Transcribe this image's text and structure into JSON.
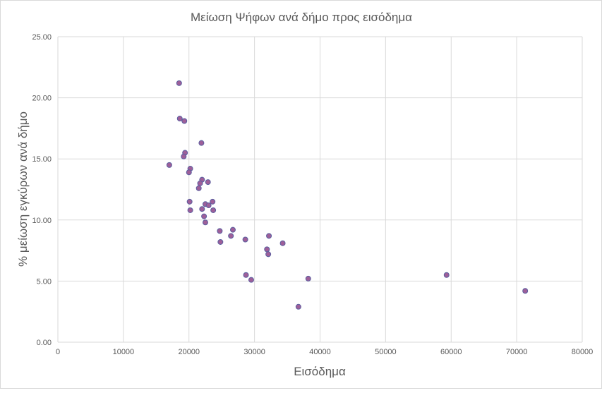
{
  "chart_data": {
    "type": "scatter",
    "title": "Μείωση Ψήφων ανά δήμο προς εισόδημα",
    "xlabel": "Εισόδημα",
    "ylabel": "% μείωση εγκύρων ανά δήμο",
    "xlim": [
      0,
      80000
    ],
    "ylim": [
      0,
      25
    ],
    "x_ticks": [
      "0",
      "10000",
      "20000",
      "30000",
      "40000",
      "50000",
      "60000",
      "70000",
      "80000"
    ],
    "y_ticks": [
      "0.00",
      "5.00",
      "10.00",
      "15.00",
      "20.00",
      "25.00"
    ],
    "grid": true,
    "legend": "none",
    "marker_fill": "#9e5f99",
    "marker_edge": "#5b5fa0",
    "gridline_color": "#d9d9d9",
    "points": [
      {
        "x": 18500,
        "y": 21.2
      },
      {
        "x": 18600,
        "y": 18.3
      },
      {
        "x": 19300,
        "y": 18.1
      },
      {
        "x": 21900,
        "y": 16.3
      },
      {
        "x": 19400,
        "y": 15.5
      },
      {
        "x": 19200,
        "y": 15.2
      },
      {
        "x": 17000,
        "y": 14.5
      },
      {
        "x": 20200,
        "y": 14.2
      },
      {
        "x": 20000,
        "y": 13.9
      },
      {
        "x": 22000,
        "y": 13.3
      },
      {
        "x": 22900,
        "y": 13.1
      },
      {
        "x": 21700,
        "y": 13.0
      },
      {
        "x": 21500,
        "y": 12.6
      },
      {
        "x": 20100,
        "y": 11.5
      },
      {
        "x": 23600,
        "y": 11.5
      },
      {
        "x": 22500,
        "y": 11.3
      },
      {
        "x": 23000,
        "y": 11.2
      },
      {
        "x": 22000,
        "y": 10.9
      },
      {
        "x": 20200,
        "y": 10.8
      },
      {
        "x": 23700,
        "y": 10.8
      },
      {
        "x": 22300,
        "y": 10.3
      },
      {
        "x": 22500,
        "y": 9.8
      },
      {
        "x": 26700,
        "y": 9.2
      },
      {
        "x": 24700,
        "y": 9.1
      },
      {
        "x": 26400,
        "y": 8.7
      },
      {
        "x": 32200,
        "y": 8.7
      },
      {
        "x": 28600,
        "y": 8.4
      },
      {
        "x": 24800,
        "y": 8.2
      },
      {
        "x": 34300,
        "y": 8.1
      },
      {
        "x": 31900,
        "y": 7.6
      },
      {
        "x": 32100,
        "y": 7.2
      },
      {
        "x": 28700,
        "y": 5.5
      },
      {
        "x": 59300,
        "y": 5.5
      },
      {
        "x": 38200,
        "y": 5.2
      },
      {
        "x": 29500,
        "y": 5.1
      },
      {
        "x": 71300,
        "y": 4.2
      },
      {
        "x": 36700,
        "y": 2.9
      }
    ]
  }
}
